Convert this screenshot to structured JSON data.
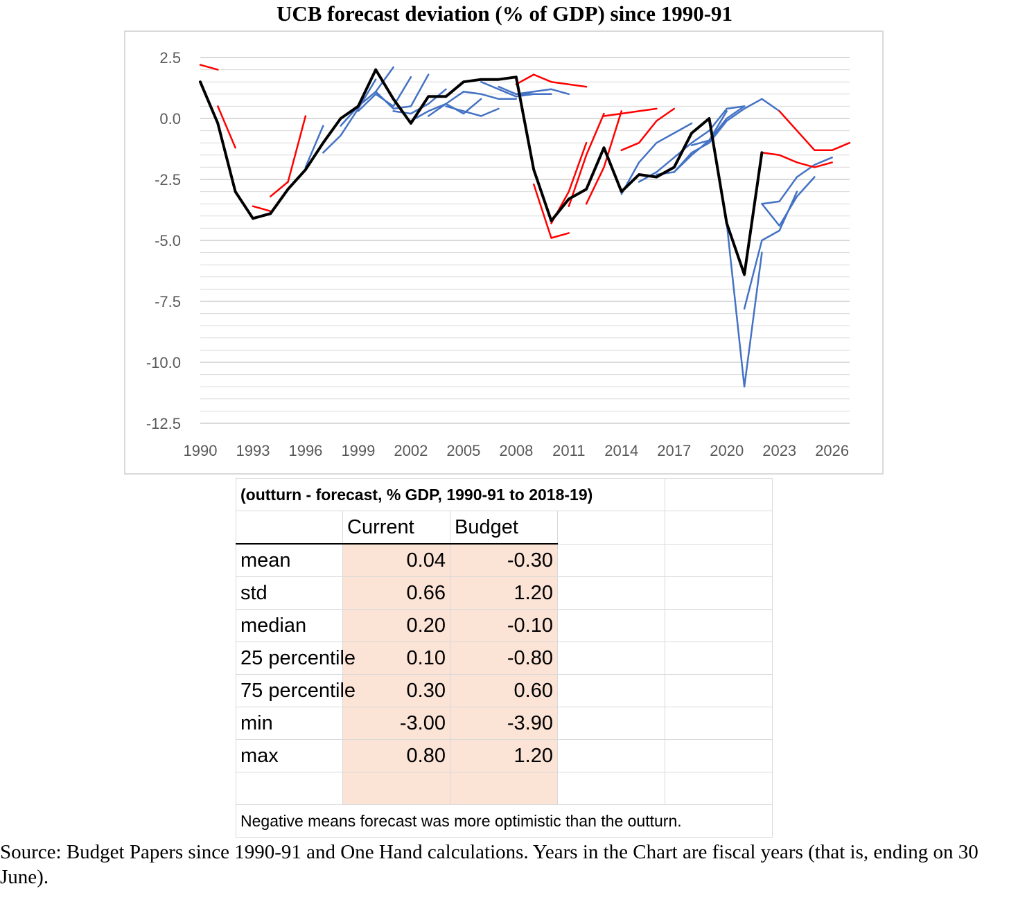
{
  "title": "UCB forecast deviation (% of GDP) since 1990-91",
  "chart_data": {
    "type": "line",
    "title": "UCB forecast deviation (% of GDP) since 1990-91",
    "xlabel": "",
    "ylabel": "",
    "xlim": [
      1990,
      2027
    ],
    "ylim": [
      -12.5,
      2.5
    ],
    "x_ticks": [
      "1990",
      "1993",
      "1996",
      "1999",
      "2002",
      "2005",
      "2008",
      "2011",
      "2014",
      "2017",
      "2020",
      "2023",
      "2026"
    ],
    "y_ticks": [
      "2.5",
      "0.0",
      "-2.5",
      "-5.0",
      "-7.5",
      "-10.0",
      "-12.5"
    ],
    "grid": true,
    "colors": {
      "outturn": "#000000",
      "budget": "#ff0000",
      "current": "#4472c4",
      "grid": "#d9d9d9",
      "axis_text": "#595959"
    },
    "outturn": {
      "x": [
        1990,
        1991,
        1992,
        1993,
        1994,
        1995,
        1996,
        1997,
        1998,
        1999,
        2000,
        2001,
        2002,
        2003,
        2004,
        2005,
        2006,
        2007,
        2008,
        2009,
        2010,
        2011,
        2012,
        2013,
        2014,
        2015,
        2016,
        2017,
        2018,
        2019,
        2020,
        2021,
        2022
      ],
      "y": [
        1.5,
        -0.2,
        -3.0,
        -4.1,
        -3.9,
        -2.9,
        -2.1,
        -1.0,
        0.0,
        0.5,
        2.0,
        0.8,
        -0.2,
        0.9,
        0.9,
        1.5,
        1.6,
        1.6,
        1.7,
        -2.1,
        -4.2,
        -3.3,
        -2.9,
        -1.2,
        -3.0,
        -2.3,
        -2.4,
        -2.0,
        -0.6,
        0.0,
        -4.3,
        -6.4,
        -1.4
      ]
    },
    "budget_forecasts": [
      {
        "x": [
          1990,
          1991
        ],
        "y": [
          2.2,
          2.0
        ]
      },
      {
        "x": [
          1991,
          1992
        ],
        "y": [
          0.5,
          -1.2
        ]
      },
      {
        "x": [
          1993,
          1994
        ],
        "y": [
          -3.6,
          -3.8
        ]
      },
      {
        "x": [
          1994,
          1995
        ],
        "y": [
          -3.2,
          -2.6
        ]
      },
      {
        "x": [
          1995,
          1996
        ],
        "y": [
          -2.6,
          0.1
        ]
      },
      {
        "x": [
          2008,
          2009,
          2010,
          2011,
          2012
        ],
        "y": [
          1.4,
          1.8,
          1.5,
          1.4,
          1.3
        ]
      },
      {
        "x": [
          2009,
          2010,
          2011
        ],
        "y": [
          -2.7,
          -4.9,
          -4.7
        ]
      },
      {
        "x": [
          2010,
          2011,
          2012
        ],
        "y": [
          -4.3,
          -3.0,
          -1.0
        ]
      },
      {
        "x": [
          2011,
          2012,
          2013
        ],
        "y": [
          -3.6,
          -1.5,
          0.2
        ]
      },
      {
        "x": [
          2012,
          2013,
          2014
        ],
        "y": [
          -3.5,
          -2.0,
          0.3
        ]
      },
      {
        "x": [
          2013,
          2014,
          2015,
          2016
        ],
        "y": [
          0.1,
          0.2,
          0.3,
          0.4
        ]
      },
      {
        "x": [
          2014,
          2015,
          2016,
          2017
        ],
        "y": [
          -1.3,
          -1.0,
          -0.1,
          0.4
        ]
      },
      {
        "x": [
          2023,
          2024,
          2025,
          2026,
          2027
        ],
        "y": [
          0.3,
          -0.5,
          -1.3,
          -1.3,
          -1.0
        ]
      },
      {
        "x": [
          2022,
          2023,
          2024,
          2025,
          2026
        ],
        "y": [
          -1.4,
          -1.5,
          -1.8,
          -2.0,
          -1.8
        ]
      }
    ],
    "current_forecasts": [
      {
        "x": [
          1996,
          1997
        ],
        "y": [
          -2.0,
          -0.3
        ]
      },
      {
        "x": [
          1997,
          1998,
          1999,
          2000
        ],
        "y": [
          -1.4,
          -0.7,
          0.4,
          1.6
        ]
      },
      {
        "x": [
          1998,
          1999,
          2000,
          2001
        ],
        "y": [
          -0.3,
          0.5,
          1.1,
          2.1
        ]
      },
      {
        "x": [
          1999,
          2000,
          2001,
          2002
        ],
        "y": [
          0.3,
          1.0,
          0.5,
          1.7
        ]
      },
      {
        "x": [
          2000,
          2001,
          2002,
          2003
        ],
        "y": [
          1.1,
          0.4,
          0.5,
          1.8
        ]
      },
      {
        "x": [
          2001,
          2002,
          2003,
          2004
        ],
        "y": [
          0.3,
          0.2,
          0.6,
          1.2
        ]
      },
      {
        "x": [
          2002,
          2003,
          2004,
          2005
        ],
        "y": [
          -0.1,
          0.3,
          0.6,
          1.1
        ]
      },
      {
        "x": [
          2003,
          2004,
          2005,
          2006
        ],
        "y": [
          0.1,
          0.6,
          0.2,
          0.8
        ]
      },
      {
        "x": [
          2004,
          2005,
          2006,
          2007
        ],
        "y": [
          0.5,
          0.3,
          0.1,
          0.4
        ]
      },
      {
        "x": [
          2005,
          2006,
          2007,
          2008
        ],
        "y": [
          1.1,
          1.0,
          0.8,
          0.8
        ]
      },
      {
        "x": [
          2006,
          2007,
          2008,
          2009
        ],
        "y": [
          1.5,
          1.2,
          0.9,
          1.0
        ]
      },
      {
        "x": [
          2007,
          2008,
          2009,
          2010
        ],
        "y": [
          1.3,
          1.0,
          1.0,
          1.0
        ]
      },
      {
        "x": [
          2008,
          2009,
          2010,
          2011
        ],
        "y": [
          1.0,
          1.1,
          1.2,
          1.0
        ]
      },
      {
        "x": [
          2014,
          2015,
          2016,
          2017,
          2018
        ],
        "y": [
          -3.1,
          -1.8,
          -1.0,
          -0.6,
          -0.2
        ]
      },
      {
        "x": [
          2015,
          2016,
          2017,
          2018,
          2019
        ],
        "y": [
          -2.6,
          -2.2,
          -1.6,
          -1.0,
          -0.5
        ]
      },
      {
        "x": [
          2016,
          2017,
          2018,
          2019,
          2020
        ],
        "y": [
          -2.3,
          -2.2,
          -1.5,
          -0.9,
          0.3
        ]
      },
      {
        "x": [
          2017,
          2018,
          2019,
          2020,
          2021,
          2022,
          2023
        ],
        "y": [
          -2.2,
          -1.4,
          -1.0,
          -0.1,
          0.4,
          0.8,
          0.3
        ]
      },
      {
        "x": [
          2018,
          2019,
          2020,
          2021
        ],
        "y": [
          -1.1,
          -0.9,
          0.0,
          0.5
        ]
      },
      {
        "x": [
          2019,
          2020,
          2021
        ],
        "y": [
          -0.5,
          0.4,
          0.5
        ]
      },
      {
        "x": [
          2020,
          2021,
          2022
        ],
        "y": [
          -4.3,
          -11.0,
          -5.5
        ]
      },
      {
        "x": [
          2021,
          2022,
          2023,
          2024
        ],
        "y": [
          -7.8,
          -5.0,
          -4.6,
          -3.0
        ]
      },
      {
        "x": [
          2022,
          2023,
          2024,
          2025
        ],
        "y": [
          -3.5,
          -4.4,
          -3.2,
          -2.4
        ]
      },
      {
        "x": [
          2022,
          2023,
          2024,
          2025,
          2026
        ],
        "y": [
          -3.5,
          -3.4,
          -2.4,
          -1.9,
          -1.6
        ]
      }
    ]
  },
  "table": {
    "header_title": "(outturn - forecast, % GDP, 1990-91 to 2018-19)",
    "columns": [
      "Current",
      "Budget"
    ],
    "rows": [
      {
        "label": "mean",
        "current": "0.04",
        "budget": "-0.30"
      },
      {
        "label": "std",
        "current": "0.66",
        "budget": "1.20"
      },
      {
        "label": "median",
        "current": "0.20",
        "budget": "-0.10"
      },
      {
        "label": "25 percentile",
        "current": "0.10",
        "budget": "-0.80"
      },
      {
        "label": "75 percentile",
        "current": "0.30",
        "budget": "0.60"
      },
      {
        "label": "min",
        "current": "-3.00",
        "budget": "-3.90"
      },
      {
        "label": "max",
        "current": "0.80",
        "budget": "1.20"
      }
    ],
    "note": "Negative means forecast was more optimistic than the outturn."
  },
  "source": "Source: Budget Papers since 1990-91 and One Hand calculations. Years in the Chart are fiscal years (that is, ending on 30 June)."
}
